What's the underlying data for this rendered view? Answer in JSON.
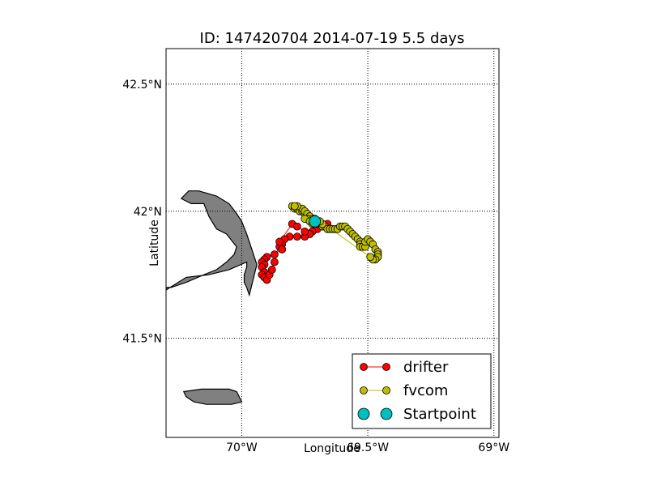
{
  "title": "ID: 147420704   2014-07-19   5.5 days",
  "xlabel": "Longitude",
  "ylabel": "Latitude",
  "xticks": [
    {
      "value": -70.0,
      "label": "70°W"
    },
    {
      "value": -69.5,
      "label": "69.5°W"
    },
    {
      "value": -69.0,
      "label": "69°W"
    }
  ],
  "yticks": [
    {
      "value": 41.5,
      "label": "41.5°N"
    },
    {
      "value": 42.0,
      "label": "42°N"
    },
    {
      "value": 42.5,
      "label": "42.5°N"
    }
  ],
  "colors": {
    "land": "#808080",
    "drifter": "#ff0000",
    "fvcom": "#bfbf00",
    "startpoint": "#00bfbf"
  },
  "legend": {
    "position": "lower-right",
    "entries": [
      {
        "label": "drifter",
        "key": "drifter"
      },
      {
        "label": "fvcom",
        "key": "fvcom"
      },
      {
        "label": "Startpoint",
        "key": "startpoint"
      }
    ]
  },
  "chart_data": {
    "type": "scatter",
    "grid": true,
    "xlim": [
      -70.3,
      -68.98
    ],
    "ylim": [
      41.11,
      42.64
    ],
    "series": [
      {
        "name": "drifter",
        "points": [
          [
            -69.66,
            41.95
          ],
          [
            -69.68,
            41.94
          ],
          [
            -69.7,
            41.93
          ],
          [
            -69.72,
            41.92
          ],
          [
            -69.73,
            41.91
          ],
          [
            -69.75,
            41.9
          ],
          [
            -69.78,
            41.9
          ],
          [
            -69.81,
            41.9
          ],
          [
            -69.83,
            41.89
          ],
          [
            -69.84,
            41.87
          ],
          [
            -69.85,
            41.86
          ],
          [
            -69.84,
            41.85
          ],
          [
            -69.87,
            41.83
          ],
          [
            -69.9,
            41.82
          ],
          [
            -69.91,
            41.81
          ],
          [
            -69.92,
            41.8
          ],
          [
            -69.91,
            41.79
          ],
          [
            -69.92,
            41.78
          ],
          [
            -69.91,
            41.76
          ],
          [
            -69.92,
            41.75
          ],
          [
            -69.91,
            41.74
          ],
          [
            -69.9,
            41.73
          ],
          [
            -69.89,
            41.75
          ],
          [
            -69.88,
            41.77
          ],
          [
            -69.87,
            41.8
          ],
          [
            -69.85,
            41.88
          ],
          [
            -69.8,
            41.95
          ],
          [
            -69.78,
            41.94
          ],
          [
            -69.75,
            41.92
          ]
        ]
      },
      {
        "name": "fvcom",
        "points": [
          [
            -69.8,
            42.02
          ],
          [
            -69.79,
            42.01
          ],
          [
            -69.78,
            42.01
          ],
          [
            -69.77,
            42.0
          ],
          [
            -69.76,
            42.0
          ],
          [
            -69.75,
            41.99
          ],
          [
            -69.74,
            41.98
          ],
          [
            -69.73,
            41.97
          ],
          [
            -69.72,
            41.96
          ],
          [
            -69.71,
            41.96
          ],
          [
            -69.7,
            41.95
          ],
          [
            -69.69,
            41.95
          ],
          [
            -69.68,
            41.94
          ],
          [
            -69.67,
            41.94
          ],
          [
            -69.66,
            41.93
          ],
          [
            -69.65,
            41.93
          ],
          [
            -69.64,
            41.93
          ],
          [
            -69.63,
            41.93
          ],
          [
            -69.62,
            41.93
          ],
          [
            -69.61,
            41.94
          ],
          [
            -69.6,
            41.94
          ],
          [
            -69.59,
            41.94
          ],
          [
            -69.58,
            41.93
          ],
          [
            -69.57,
            41.92
          ],
          [
            -69.56,
            41.91
          ],
          [
            -69.55,
            41.9
          ],
          [
            -69.54,
            41.89
          ],
          [
            -69.53,
            41.88
          ],
          [
            -69.53,
            41.87
          ],
          [
            -69.53,
            41.86
          ],
          [
            -69.52,
            41.86
          ],
          [
            -69.51,
            41.86
          ],
          [
            -69.51,
            41.88
          ],
          [
            -69.5,
            41.89
          ],
          [
            -69.49,
            41.88
          ],
          [
            -69.48,
            41.87
          ],
          [
            -69.47,
            41.85
          ],
          [
            -69.46,
            41.84
          ],
          [
            -69.46,
            41.83
          ],
          [
            -69.46,
            41.82
          ],
          [
            -69.47,
            41.81
          ],
          [
            -69.48,
            41.81
          ],
          [
            -69.49,
            41.82
          ],
          [
            -69.76,
            42.01
          ],
          [
            -69.75,
            42.0
          ],
          [
            -69.74,
            41.99
          ],
          [
            -69.78,
            42.02
          ],
          [
            -69.79,
            42.02
          ],
          [
            -69.73,
            41.98
          ],
          [
            -69.72,
            41.97
          ],
          [
            -69.7,
            41.96
          ],
          [
            -69.71,
            41.97
          ],
          [
            -69.68,
            41.95
          ],
          [
            -69.69,
            41.96
          ],
          [
            -69.74,
            41.97
          ],
          [
            -69.75,
            41.97
          ],
          [
            -69.73,
            41.96
          ],
          [
            -69.72,
            41.95
          ]
        ]
      },
      {
        "name": "Startpoint",
        "points": [
          [
            -69.71,
            41.96
          ]
        ]
      }
    ]
  },
  "land": [
    {
      "name": "cape-cod",
      "points": [
        [
          -70.3,
          41.69
        ],
        [
          -70.22,
          41.74
        ],
        [
          -70.13,
          41.75
        ],
        [
          -70.05,
          41.77
        ],
        [
          -69.98,
          41.8
        ],
        [
          -69.98,
          41.78
        ],
        [
          -69.99,
          41.75
        ],
        [
          -69.99,
          41.72
        ],
        [
          -69.98,
          41.7
        ],
        [
          -69.97,
          41.67
        ],
        [
          -69.94,
          41.79
        ],
        [
          -69.96,
          41.85
        ],
        [
          -69.98,
          41.91
        ],
        [
          -70.0,
          41.96
        ],
        [
          -70.02,
          41.99
        ],
        [
          -70.05,
          42.03
        ],
        [
          -70.1,
          42.06
        ],
        [
          -70.17,
          42.08
        ],
        [
          -70.21,
          42.08
        ],
        [
          -70.24,
          42.05
        ],
        [
          -70.2,
          42.03
        ],
        [
          -70.15,
          42.03
        ],
        [
          -70.13,
          41.98
        ],
        [
          -70.1,
          41.93
        ],
        [
          -70.06,
          41.91
        ],
        [
          -70.02,
          41.86
        ],
        [
          -70.03,
          41.83
        ],
        [
          -70.06,
          41.8
        ],
        [
          -70.1,
          41.77
        ],
        [
          -70.15,
          41.75
        ],
        [
          -70.22,
          41.72
        ],
        [
          -70.28,
          41.7
        ],
        [
          -70.3,
          41.7
        ]
      ]
    },
    {
      "name": "nantucket",
      "points": [
        [
          -70.23,
          41.29
        ],
        [
          -70.16,
          41.3
        ],
        [
          -70.1,
          41.3
        ],
        [
          -70.05,
          41.3
        ],
        [
          -70.02,
          41.29
        ],
        [
          -70.0,
          41.25
        ],
        [
          -70.04,
          41.24
        ],
        [
          -70.08,
          41.24
        ],
        [
          -70.14,
          41.24
        ],
        [
          -70.19,
          41.25
        ],
        [
          -70.22,
          41.27
        ],
        [
          -70.23,
          41.29
        ]
      ]
    }
  ]
}
